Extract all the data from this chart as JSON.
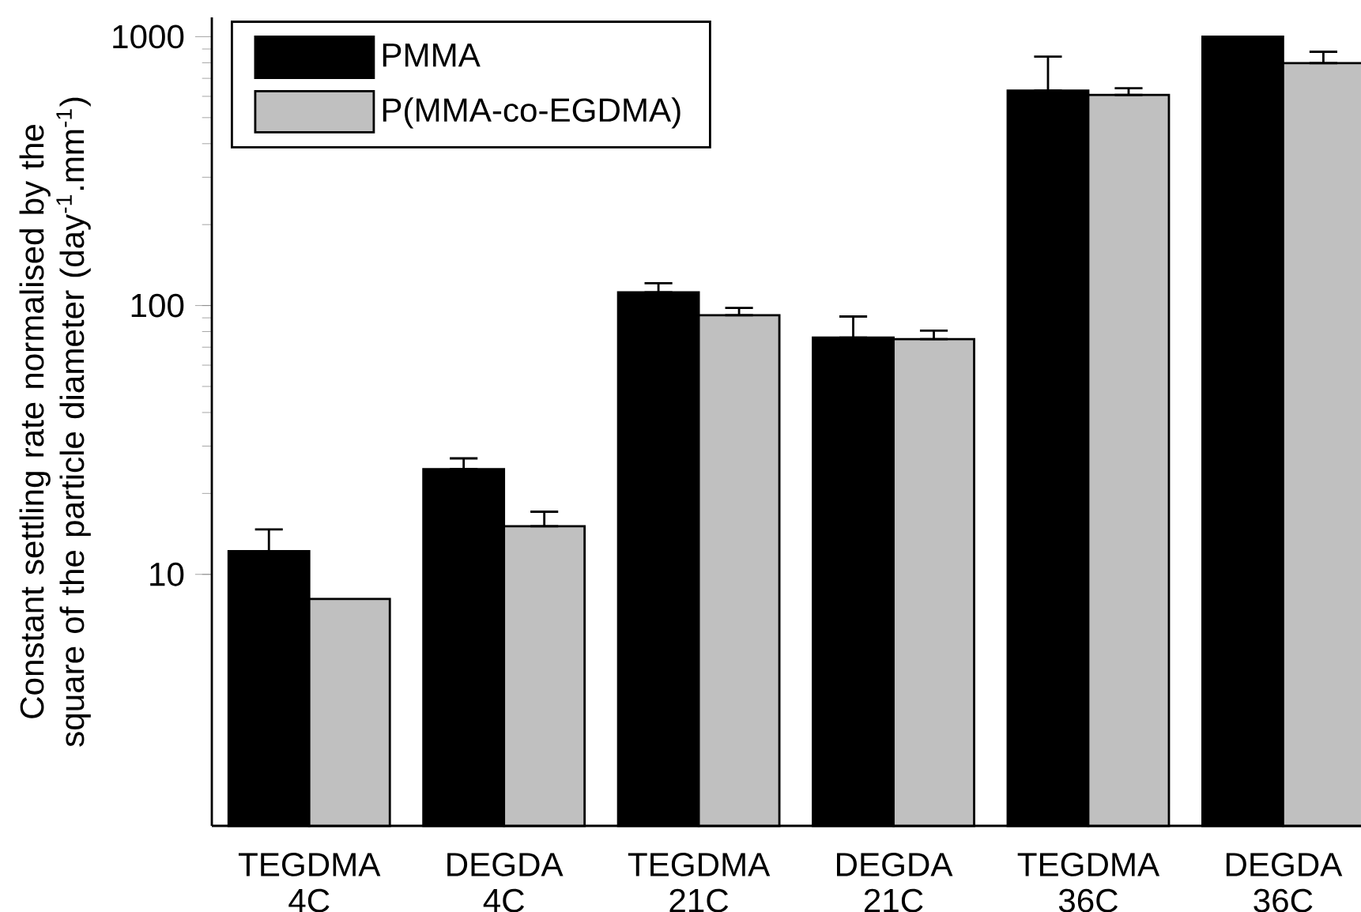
{
  "chart_data": {
    "type": "bar",
    "ylabel": "Constant settling rate normalised by the square of the particle diameter (day$^{-1}$.mm$^{-1}$)",
    "categories": [
      "TEGDMA 4C",
      "DEGDA 4C",
      "TEGDMA 21C",
      "DEGDA 21C",
      "TEGDMA 36C",
      "DEGDA 36C"
    ],
    "series": [
      {
        "name": "PMMA",
        "color": "#000000",
        "values": [
          12.2,
          24.6,
          112,
          76,
          630,
          1000
        ],
        "errors": [
          [
            12.2,
            14.7
          ],
          [
            24.6,
            27
          ],
          [
            112,
            121
          ],
          [
            76,
            91
          ],
          [
            630,
            843
          ],
          null
        ]
      },
      {
        "name": "P(MMA-co-EGDMA)",
        "color": "#c0c0c0",
        "values": [
          8.1,
          15.1,
          92,
          75,
          607,
          798
        ],
        "errors": [
          null,
          [
            15.1,
            17.1
          ],
          [
            92,
            98
          ],
          [
            75,
            80.6
          ],
          [
            607,
            643
          ],
          [
            798,
            879
          ]
        ]
      }
    ],
    "log": "y",
    "ylim": [
      1.16,
      1180
    ],
    "yticks": [
      10,
      100,
      1000
    ],
    "legend": "top left",
    "grid": false
  }
}
